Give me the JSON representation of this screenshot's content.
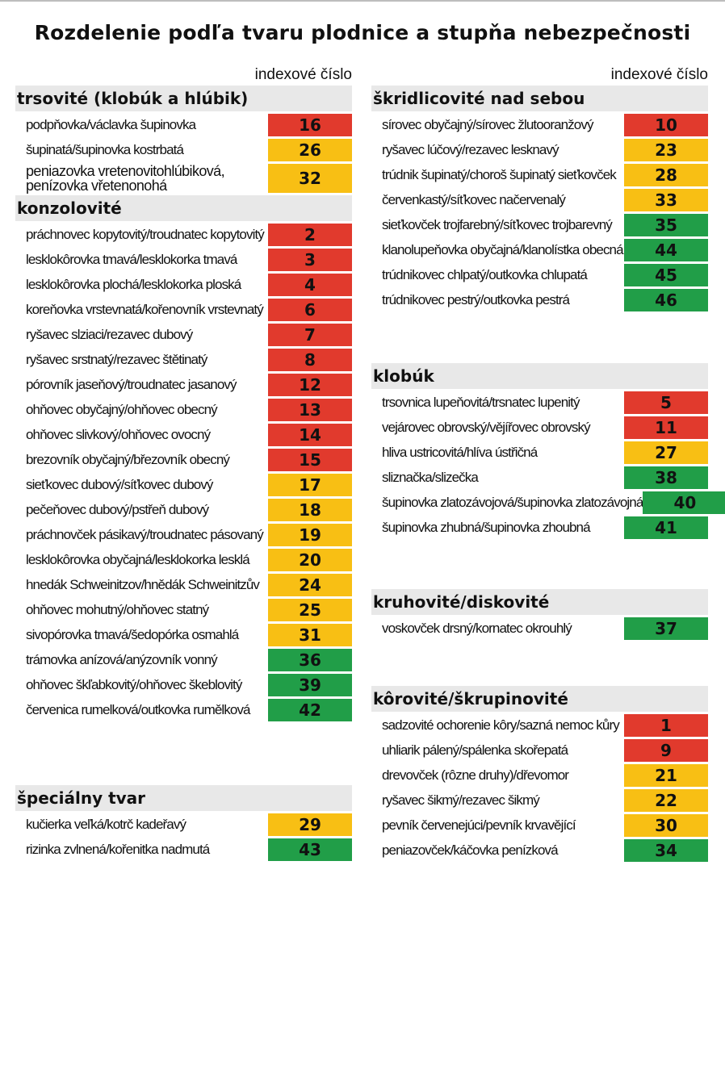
{
  "title": "Rozdelenie podľa tvaru plodnice a stupňa nebezpečnosti",
  "index_label": "indexové číslo",
  "colors": {
    "red": "#e13a2d",
    "yellow": "#f8bf14",
    "green": "#219e48",
    "header_bg": "#e8e8e8"
  },
  "left": {
    "trsovite": {
      "title": "trsovité (klobúk a hlúbik)",
      "rows": [
        {
          "name": "podpňovka/václavka  šupinovka",
          "value": "16",
          "level": "red"
        },
        {
          "name": "šupinatá/šupinovka kostrbatá",
          "value": "26",
          "level": "yellow"
        },
        {
          "name": "peniazovka vretenovitohlúbiková,",
          "name2": "penízovka vřetenonohá",
          "value": "32",
          "level": "yellow"
        }
      ]
    },
    "konzolovite": {
      "title": "konzolovité",
      "rows": [
        {
          "name": "práchnovec kopytovitý/troudnatec kopytovitý",
          "value": "2",
          "level": "red"
        },
        {
          "name": "lesklokôrovka tmavá/lesklokorka tmavá",
          "value": "3",
          "level": "red"
        },
        {
          "name": "lesklokôrovka plochá/lesklokorka ploská",
          "value": "4",
          "level": "red"
        },
        {
          "name": "koreňovka vrstevnatá/kořenovník vrstevnatý",
          "value": "6",
          "level": "red"
        },
        {
          "name": "ryšavec slziaci/rezavec dubový",
          "value": "7",
          "level": "red"
        },
        {
          "name": "ryšavec srstnatý/rezavec štětinatý",
          "value": "8",
          "level": "red"
        },
        {
          "name": "pórovník jaseňový/troudnatec jasanový",
          "value": "12",
          "level": "red"
        },
        {
          "name": "ohňovec obyčajný/ohňovec obecný",
          "value": "13",
          "level": "red"
        },
        {
          "name": "ohňovec slivkový/ohňovec ovocný",
          "value": "14",
          "level": "red"
        },
        {
          "name": "brezovník obyčajný/březovník obecný",
          "value": "15",
          "level": "red"
        },
        {
          "name": "sieťkovec dubový/síťkovec dubový",
          "value": "17",
          "level": "yellow"
        },
        {
          "name": "pečeňovec dubový/pstřeň dubový",
          "value": "18",
          "level": "yellow"
        },
        {
          "name": "práchnovček pásikavý/troudnatec pásovaný",
          "value": "19",
          "level": "yellow"
        },
        {
          "name": "lesklokôrovka obyčajná/lesklokorka lesklá",
          "value": "20",
          "level": "yellow"
        },
        {
          "name": "hnedák Schweinitzov/hnědák Schweinitzův",
          "value": "24",
          "level": "yellow"
        },
        {
          "name": "ohňovec mohutný/ohňovec statný",
          "value": "25",
          "level": "yellow"
        },
        {
          "name": "sivopórovka tmavá/šedopórka osmahlá",
          "value": "31",
          "level": "yellow"
        },
        {
          "name": "trámovka anízová/anýzovník vonný",
          "value": "36",
          "level": "green"
        },
        {
          "name": "ohňovec škľabkovitý/ohňovec škeblovitý",
          "value": "39",
          "level": "green"
        },
        {
          "name": "červenica rumelková/outkovka rumělková",
          "value": "42",
          "level": "green"
        }
      ]
    },
    "specialny": {
      "title": "špeciálny tvar",
      "rows": [
        {
          "name": "kučierka veľká/kotrč kadeřavý",
          "value": "29",
          "level": "yellow"
        },
        {
          "name": "rizinka zvlnená/kořenitka nadmutá",
          "value": "43",
          "level": "green"
        }
      ]
    }
  },
  "right": {
    "skridlicovite": {
      "title": "škridlicovité nad sebou",
      "rows": [
        {
          "name": "sírovec obyčajný/sírovec žlutooranžový",
          "value": "10",
          "level": "red"
        },
        {
          "name": "ryšavec lúčový/rezavec lesknavý",
          "value": "23",
          "level": "yellow"
        },
        {
          "name": "trúdnik šupinatý/choroš šupinatý sieťkovček",
          "value": "28",
          "level": "yellow"
        },
        {
          "name": "červenkastý/síťkovec načervenalý",
          "value": "33",
          "level": "yellow"
        },
        {
          "name": "sieťkovček trojfarebný/síťkovec trojbarevný",
          "value": "35",
          "level": "green"
        },
        {
          "name": "klanolupeňovka obyčajná/klanolístka obecná",
          "value": "44",
          "level": "green"
        },
        {
          "name": "trúdnikovec chlpatý/outkovka chlupatá",
          "value": "45",
          "level": "green"
        },
        {
          "name": "trúdnikovec pestrý/outkovka pestrá",
          "value": "46",
          "level": "green"
        }
      ]
    },
    "klobuk": {
      "title": "klobúk",
      "rows": [
        {
          "name": "trsovnica lupeňovitá/trsnatec lupenitý",
          "value": "5",
          "level": "red"
        },
        {
          "name": "vejárovec obrovský/vějířovec obrovský",
          "value": "11",
          "level": "red"
        },
        {
          "name": "hliva ustricovitá/hlíva ústřičná",
          "value": "27",
          "level": "yellow"
        },
        {
          "name": "sliznačka/slizečka",
          "value": "38",
          "level": "green"
        },
        {
          "name": "šupinovka zlatozávojová/šupinovka zlatozávojná",
          "value": "40",
          "level": "green"
        },
        {
          "name": "šupinovka zhubná/šupinovka zhoubná",
          "value": "41",
          "level": "green"
        }
      ]
    },
    "kruhovite": {
      "title": "kruhovité/diskovité",
      "rows": [
        {
          "name": "voskovček drsný/kornatec okrouhlý",
          "value": "37",
          "level": "green"
        }
      ]
    },
    "korovite": {
      "title": "kôrovité/škrupinovité",
      "rows": [
        {
          "name": "sadzovité ochorenie kôry/sazná nemoc kůry",
          "value": "1",
          "level": "red"
        },
        {
          "name": "uhliarik pálený/spálenka skořepatá",
          "value": "9",
          "level": "red"
        },
        {
          "name": "drevovček (rôzne druhy)/dřevomor",
          "value": "21",
          "level": "yellow"
        },
        {
          "name": "ryšavec šikmý/rezavec šikmý",
          "value": "22",
          "level": "yellow"
        },
        {
          "name": "pevník červenejúci/pevník krvavějící",
          "value": "30",
          "level": "yellow"
        },
        {
          "name": "peniazovček/káčovka penízková",
          "value": "34",
          "level": "green"
        }
      ]
    }
  }
}
